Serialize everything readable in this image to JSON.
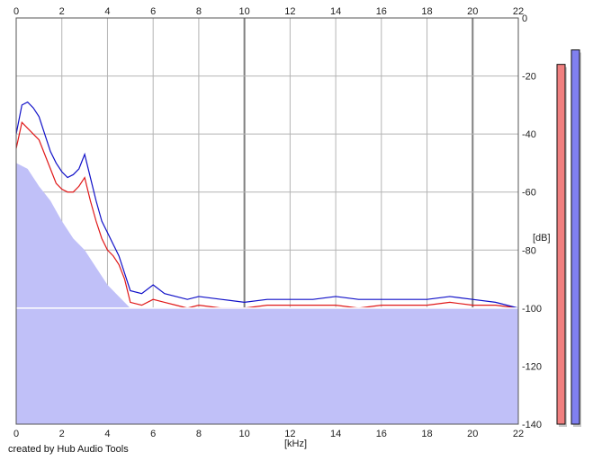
{
  "chart_data": {
    "type": "line",
    "xlabel": "[kHz]",
    "ylabel": "[dB]",
    "xlim": [
      0,
      22
    ],
    "ylim": [
      -140,
      0
    ],
    "x_ticks": [
      0,
      2,
      4,
      6,
      8,
      10,
      12,
      14,
      16,
      18,
      20,
      22
    ],
    "y_ticks": [
      0,
      -20,
      -40,
      -60,
      -80,
      -100,
      -120,
      -140
    ],
    "grid": true,
    "reference_line_db": -100,
    "series": [
      {
        "color": "#1010c8",
        "x": [
          0,
          0.25,
          0.5,
          0.75,
          1,
          1.25,
          1.5,
          1.75,
          2,
          2.25,
          2.5,
          2.75,
          3,
          3.25,
          3.5,
          3.75,
          4,
          4.25,
          4.5,
          4.75,
          5,
          5.5,
          6,
          6.5,
          7,
          7.5,
          8,
          9,
          10,
          11,
          12,
          13,
          14,
          15,
          16,
          17,
          18,
          19,
          20,
          21,
          22
        ],
        "values": [
          -40,
          -30,
          -29,
          -31,
          -34,
          -40,
          -46,
          -50,
          -53,
          -55,
          -54,
          -52,
          -47,
          -55,
          -63,
          -70,
          -74,
          -78,
          -82,
          -88,
          -94,
          -95,
          -92,
          -95,
          -96,
          -97,
          -96,
          -97,
          -98,
          -97,
          -97,
          -97,
          -96,
          -97,
          -97,
          -97,
          -97,
          -96,
          -97,
          -98,
          -100
        ]
      },
      {
        "color": "#e01818",
        "x": [
          0,
          0.25,
          0.5,
          0.75,
          1,
          1.25,
          1.5,
          1.75,
          2,
          2.25,
          2.5,
          2.75,
          3,
          3.25,
          3.5,
          3.75,
          4,
          4.25,
          4.5,
          4.75,
          5,
          5.5,
          6,
          6.5,
          7,
          7.5,
          8,
          9,
          10,
          11,
          12,
          13,
          14,
          15,
          16,
          17,
          18,
          19,
          20,
          21,
          22
        ],
        "values": [
          -45,
          -36,
          -38,
          -40,
          -42,
          -47,
          -52,
          -57,
          -59,
          -60,
          -60,
          -58,
          -55,
          -63,
          -70,
          -76,
          -80,
          -82,
          -85,
          -90,
          -98,
          -99,
          -97,
          -98,
          -99,
          -100,
          -99,
          -100,
          -100,
          -99,
          -99,
          -99,
          -99,
          -100,
          -99,
          -99,
          -99,
          -98,
          -99,
          -99,
          -100
        ]
      }
    ],
    "filled_area": {
      "color": "#c0c0f8",
      "x": [
        0,
        0.5,
        1,
        1.5,
        2,
        2.5,
        3,
        3.5,
        4,
        4.5,
        5,
        6,
        8,
        10,
        12,
        14,
        16,
        18,
        20,
        22
      ],
      "values": [
        -50,
        -52,
        -58,
        -63,
        -70,
        -76,
        -80,
        -86,
        -92,
        -96,
        -100,
        -100,
        -100,
        -100,
        -100,
        -100,
        -100,
        -100,
        -100,
        -100
      ]
    },
    "level_meters": [
      {
        "channel": "left",
        "color": "#f08080",
        "level_db": -16
      },
      {
        "channel": "right",
        "color": "#8080f0",
        "level_db": -11
      }
    ]
  },
  "footer": {
    "credit": "created by Hub Audio Tools"
  }
}
